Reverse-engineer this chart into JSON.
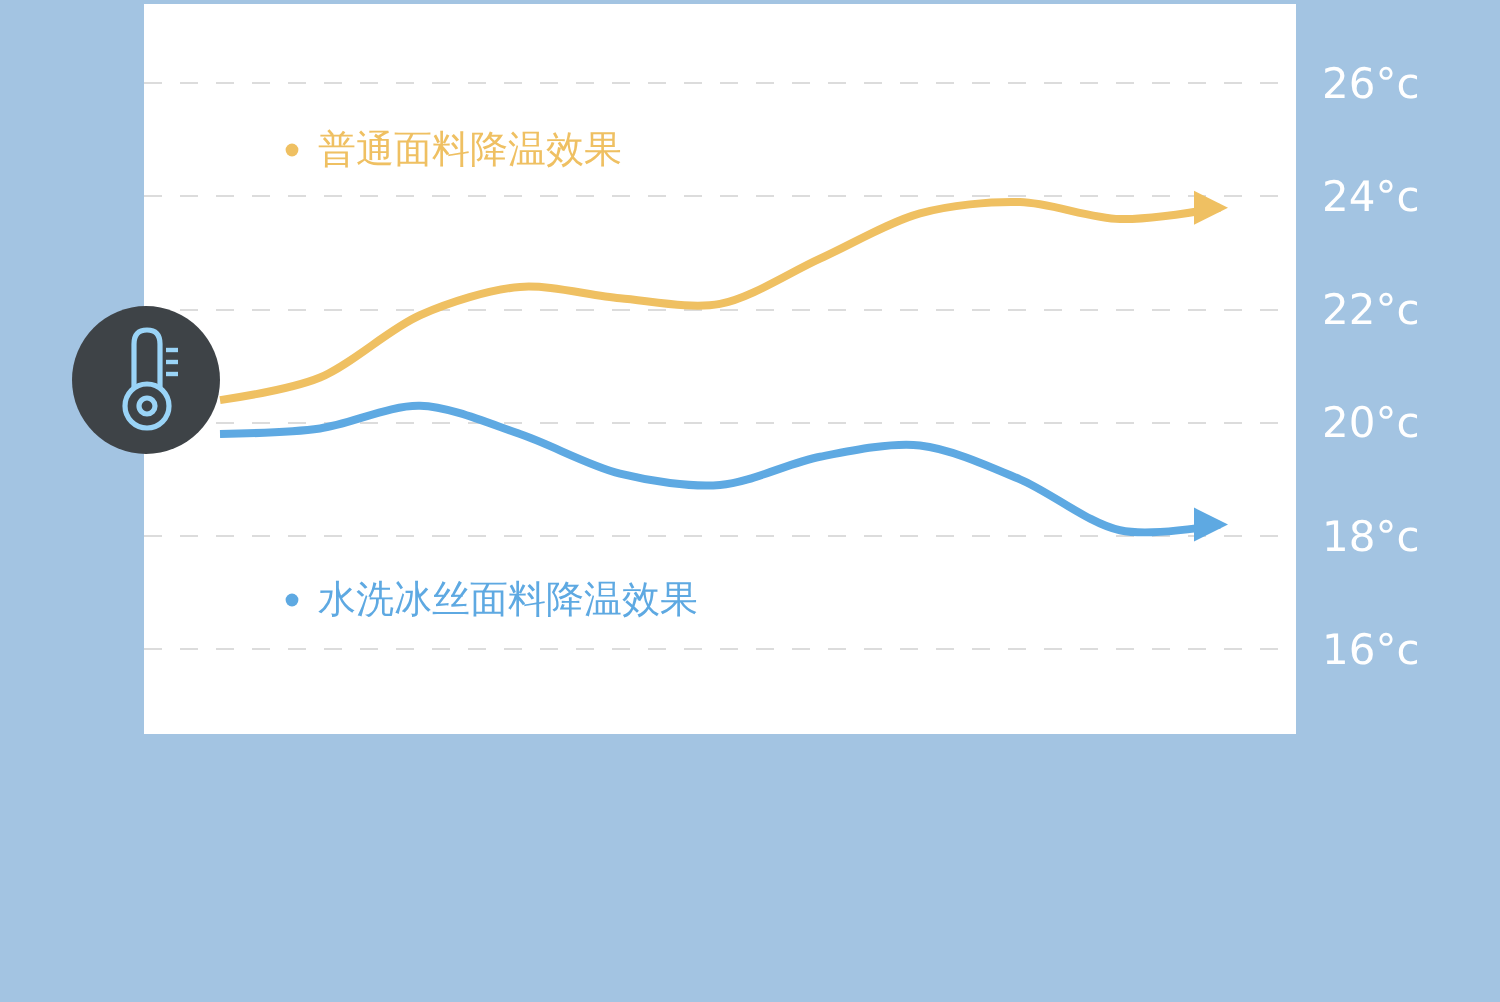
{
  "chart_data": {
    "type": "line",
    "categories": [
      null,
      null,
      null,
      null,
      null,
      null,
      null,
      null,
      null,
      null,
      null
    ],
    "series": [
      {
        "name": "普通面料降温效果",
        "color": "#efc062",
        "values": [
          20.4,
          20.8,
          21.9,
          22.4,
          22.2,
          22.1,
          22.9,
          23.7,
          23.9,
          23.6,
          23.8
        ]
      },
      {
        "name": "水洗冰丝面料降温效果",
        "color": "#5ea9e2",
        "values": [
          19.8,
          19.9,
          20.3,
          19.8,
          19.1,
          18.9,
          19.4,
          19.6,
          19.0,
          18.1,
          18.2
        ]
      }
    ],
    "ylim": [
      14.5,
      27.4
    ],
    "yticks": [
      {
        "value": 16,
        "label": "16°c"
      },
      {
        "value": 18,
        "label": "18°c"
      },
      {
        "value": 20,
        "label": "20°c"
      },
      {
        "value": 22,
        "label": "22°c"
      },
      {
        "value": 24,
        "label": "24°c"
      },
      {
        "value": 26,
        "label": "26°c"
      }
    ],
    "grid": "y",
    "legend": "left",
    "marker": "none",
    "line_style": "solid"
  }
}
